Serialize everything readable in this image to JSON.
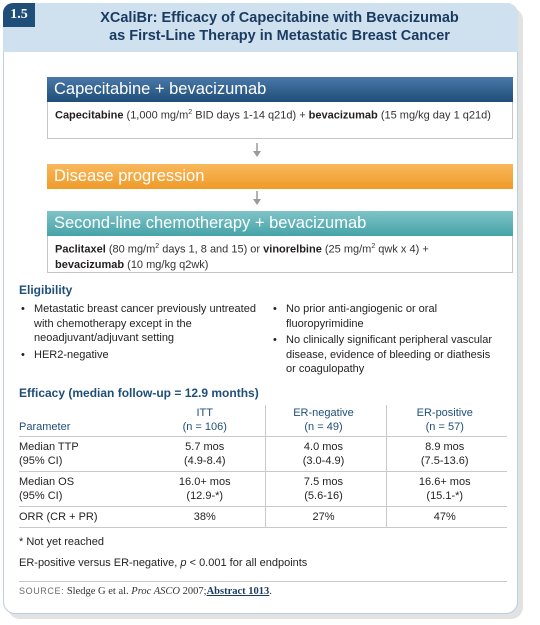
{
  "badge": "1.5",
  "title": {
    "line1": "XCaliBr: Efficacy of Capecitabine with Bevacizumab",
    "line2": "as First-Line Therapy in Metastatic Breast Cancer"
  },
  "flow": {
    "step1": {
      "heading": "Capecitabine + bevacizumab",
      "drug1": "Capecitabine",
      "dose1_a": " (1,000 mg/m",
      "dose1_sup": "2",
      "dose1_b": " BID days 1-14 q21d) + ",
      "drug2": "bevacizumab",
      "dose2": " (15 mg/kg day 1 q21d)"
    },
    "step2": {
      "heading": "Disease progression"
    },
    "step3": {
      "heading": "Second-line chemotherapy + bevacizumab",
      "drug1": "Paclitaxel",
      "dose1_a": " (80 mg/m",
      "dose1_sup": "2",
      "dose1_b": " days 1, 8 and 15) or ",
      "drug2": "vinorelbine",
      "dose2_a": " (25 mg/m",
      "dose2_sup": "2",
      "dose2_b": " qwk x 4) +",
      "drug3": "bevacizumab",
      "dose3": " (10 mg/kg q2wk)"
    }
  },
  "eligibility": {
    "heading": "Eligibility",
    "left": [
      "Metastatic breast cancer previously untreated with chemotherapy except in the neoadjuvant/adjuvant setting",
      "HER2-negative"
    ],
    "right": [
      "No prior anti-angiogenic or oral fluoropyrimidine",
      "No clinically significant peripheral vascular disease, evidence of bleeding or diathesis or coagulopathy"
    ]
  },
  "efficacy": {
    "heading": "Efficacy (median follow-up = 12.9 months)",
    "columns": [
      {
        "name": "ITT",
        "n": "(n = 106)"
      },
      {
        "name": "ER-negative",
        "n": "(n = 49)"
      },
      {
        "name": "ER-positive",
        "n": "(n = 57)"
      }
    ],
    "param_header": "Parameter",
    "rows": [
      {
        "label1": "Median TTP",
        "label2": "(95% CI)",
        "vals": [
          [
            "5.7 mos",
            "(4.9-8.4)"
          ],
          [
            "4.0 mos",
            "(3.0-4.9)"
          ],
          [
            "8.9 mos",
            "(7.5-13.6)"
          ]
        ]
      },
      {
        "label1": "Median OS",
        "label2": "(95% CI)",
        "vals": [
          [
            "16.0+ mos",
            "(12.9-*)"
          ],
          [
            "7.5 mos",
            "(5.6-16)"
          ],
          [
            "16.6+ mos",
            "(15.1-*)"
          ]
        ]
      },
      {
        "label1": "ORR (CR + PR)",
        "label2": "",
        "vals": [
          [
            "38%",
            ""
          ],
          [
            "27%",
            ""
          ],
          [
            "47%",
            ""
          ]
        ]
      }
    ]
  },
  "notes": {
    "not_reached": "* Not yet reached",
    "comparison_a": "ER-positive versus ER-negative, ",
    "comparison_p": "p",
    "comparison_b": " < 0.001 for all endpoints"
  },
  "source": {
    "label": "SOURCE:",
    "authors": " Sledge G et al. ",
    "journal": "Proc ASCO",
    "year": " 2007;",
    "link": "Abstract 1013",
    "end": "."
  },
  "colors": {
    "header_bg": "#cfe0ef",
    "navy": "#1f4e79",
    "orange": "#ef9b28",
    "teal": "#45a3a8"
  }
}
